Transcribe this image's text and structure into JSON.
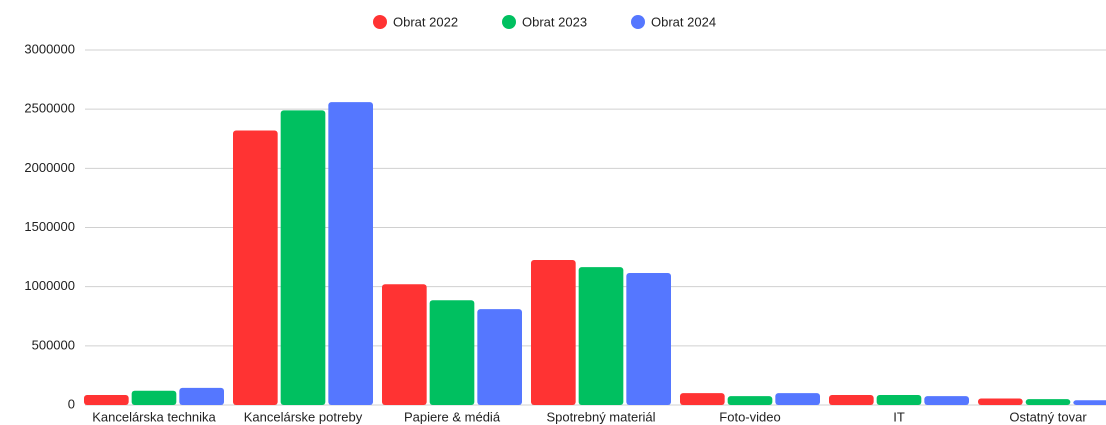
{
  "chart_data": {
    "type": "bar",
    "categories": [
      "Kancelárska technika",
      "Kancelárske potreby",
      "Papiere & médiá",
      "Spotrebný materiál",
      "Foto-video",
      "IT",
      "Ostatný tovar"
    ],
    "series": [
      {
        "name": "Obrat 2022",
        "color": "#ff3333",
        "values": [
          85000,
          2320000,
          1020000,
          1225000,
          100000,
          85000,
          55000
        ]
      },
      {
        "name": "Obrat 2023",
        "color": "#00c060",
        "values": [
          120000,
          2490000,
          885000,
          1165000,
          75000,
          85000,
          50000
        ]
      },
      {
        "name": "Obrat 2024",
        "color": "#5577ff",
        "values": [
          145000,
          2560000,
          810000,
          1115000,
          100000,
          75000,
          40000
        ]
      }
    ],
    "ylim": [
      0,
      3000000
    ],
    "yticks": [
      0,
      500000,
      1000000,
      1500000,
      2000000,
      2500000,
      3000000
    ],
    "grid": true,
    "legend": "top"
  }
}
